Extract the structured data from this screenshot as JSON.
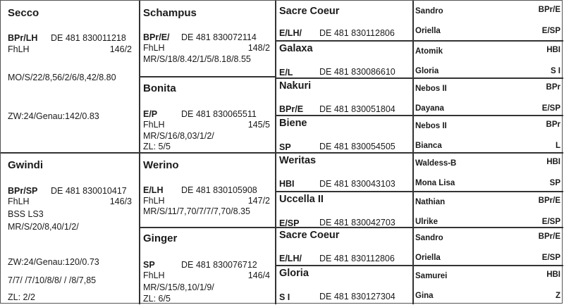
{
  "generation1": [
    {
      "name": "Secco",
      "breed": "BPr/LH",
      "ueln": "DE 481 830011218",
      "line": "FhLH",
      "height": "146/2",
      "notes": [
        "MO/S/22/8,56/2/6/8,42/8.80",
        "ZW:24/Genau:142/0.83"
      ]
    },
    {
      "name": "Gwindi",
      "breed": "BPr/SP",
      "ueln": "DE 481 830010417",
      "line": "FhLH",
      "height": "146/3",
      "notes": [
        "BSS  LS3",
        "MR/S/20/8,40/1/2/",
        "ZW:24/Genau:120/0.73",
        "7/7/ /7/10/8/8/ / /8/7,85",
        "ZL:  2/2"
      ]
    }
  ],
  "generation2": [
    {
      "name": "Schampus",
      "breed": "BPr/E/",
      "ueln": "DE 481 830072114",
      "line": "FhLH",
      "height": "148/2",
      "notes": [
        "MR/S/18/8.42/1/5/8.18/8.55"
      ]
    },
    {
      "name": "Bonita",
      "breed": "E/P",
      "ueln": "DE 481 830065511",
      "line": "FhLH",
      "height": "145/5",
      "notes": [
        "MR/S/16/8,03/1/2/",
        "ZL:  5/5"
      ]
    },
    {
      "name": "Werino",
      "breed": "E/LH",
      "ueln": "DE 481 830105908",
      "line": "FhLH",
      "height": "147/2",
      "notes": [
        "MR/S/11/7,70/7/7/7,70/8.35"
      ]
    },
    {
      "name": "Ginger",
      "breed": "SP",
      "ueln": "DE 481 830076712",
      "line": "FhLH",
      "height": "146/4",
      "notes": [
        "MR/S/15/8,10/1/9/",
        "ZL:  6/5"
      ]
    }
  ],
  "generation3": [
    {
      "name": "Sacre Coeur",
      "breed": "E/LH/",
      "ueln": "DE 481 830112806"
    },
    {
      "name": "Galaxa",
      "breed": "E/L",
      "ueln": "DE 481 830086610"
    },
    {
      "name": "Nakuri",
      "breed": "BPr/E",
      "ueln": "DE 481 830051804"
    },
    {
      "name": "Biene",
      "breed": "SP",
      "ueln": "DE 481 830054505"
    },
    {
      "name": "Weritas",
      "breed": "HBI",
      "ueln": "DE 481 830043103"
    },
    {
      "name": "Uccella II",
      "breed": "E/SP",
      "ueln": "DE 481 830042703"
    },
    {
      "name": "Sacre Coeur",
      "breed": "E/LH/",
      "ueln": "DE 481 830112806"
    },
    {
      "name": "Gloria",
      "breed": "S I",
      "ueln": "DE 481 830127304"
    }
  ],
  "generation4": [
    {
      "name": "Sandro",
      "breed": "BPr/E"
    },
    {
      "name": "Oriella",
      "breed": "E/SP"
    },
    {
      "name": "Atomik",
      "breed": "HBI"
    },
    {
      "name": "Gloria",
      "breed": "S I"
    },
    {
      "name": "Nebos II",
      "breed": "BPr"
    },
    {
      "name": "Dayana",
      "breed": "E/SP"
    },
    {
      "name": "Nebos II",
      "breed": "BPr"
    },
    {
      "name": "Bianca",
      "breed": "L"
    },
    {
      "name": "Waldess-B",
      "breed": "HBI"
    },
    {
      "name": "Mona Lisa",
      "breed": "SP"
    },
    {
      "name": "Nathian",
      "breed": "BPr/E"
    },
    {
      "name": "Ulrike",
      "breed": "E/SP"
    },
    {
      "name": "Sandro",
      "breed": "BPr/E"
    },
    {
      "name": "Oriella",
      "breed": "E/SP"
    },
    {
      "name": "Samurei",
      "breed": "HBI"
    },
    {
      "name": "Gina",
      "breed": "Z"
    }
  ]
}
